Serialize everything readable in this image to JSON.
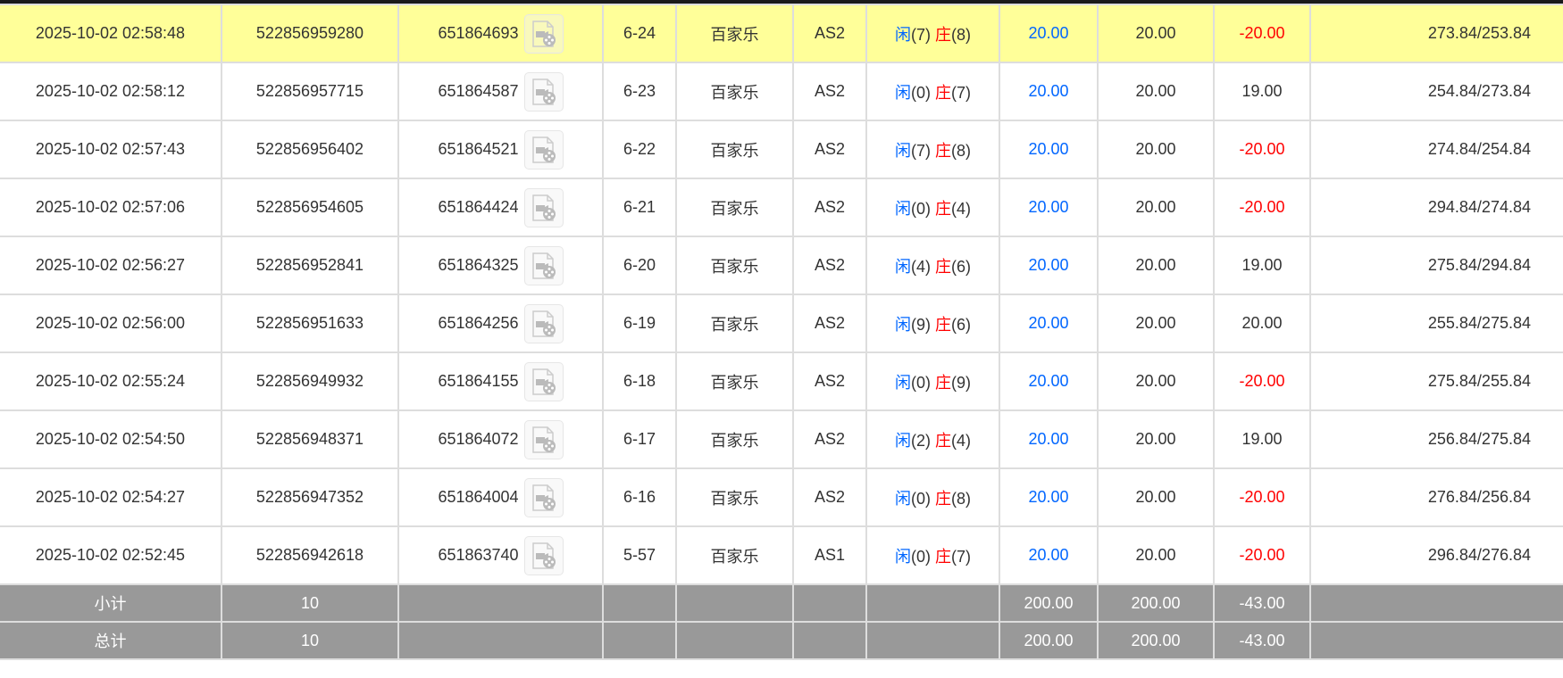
{
  "colors": {
    "highlight": "#ffff99",
    "blue": "#0066ff",
    "red": "#ff0000",
    "summary_bg": "#999999"
  },
  "rows": [
    {
      "time": "2025-10-02 02:58:48",
      "order": "522856959280",
      "round": "651864693",
      "shoe": "6-24",
      "game": "百家乐",
      "table": "AS2",
      "p": "闲",
      "pv": "(7)",
      "b": "庄",
      "bv": "(8)",
      "bet": "20.00",
      "valid": "20.00",
      "win": "-20.00",
      "neg": true,
      "balance": "273.84/253.84",
      "highlight": true
    },
    {
      "time": "2025-10-02 02:58:12",
      "order": "522856957715",
      "round": "651864587",
      "shoe": "6-23",
      "game": "百家乐",
      "table": "AS2",
      "p": "闲",
      "pv": "(0)",
      "b": "庄",
      "bv": "(7)",
      "bet": "20.00",
      "valid": "20.00",
      "win": "19.00",
      "neg": false,
      "balance": "254.84/273.84"
    },
    {
      "time": "2025-10-02 02:57:43",
      "order": "522856956402",
      "round": "651864521",
      "shoe": "6-22",
      "game": "百家乐",
      "table": "AS2",
      "p": "闲",
      "pv": "(7)",
      "b": "庄",
      "bv": "(8)",
      "bet": "20.00",
      "valid": "20.00",
      "win": "-20.00",
      "neg": true,
      "balance": "274.84/254.84"
    },
    {
      "time": "2025-10-02 02:57:06",
      "order": "522856954605",
      "round": "651864424",
      "shoe": "6-21",
      "game": "百家乐",
      "table": "AS2",
      "p": "闲",
      "pv": "(0)",
      "b": "庄",
      "bv": "(4)",
      "bet": "20.00",
      "valid": "20.00",
      "win": "-20.00",
      "neg": true,
      "balance": "294.84/274.84"
    },
    {
      "time": "2025-10-02 02:56:27",
      "order": "522856952841",
      "round": "651864325",
      "shoe": "6-20",
      "game": "百家乐",
      "table": "AS2",
      "p": "闲",
      "pv": "(4)",
      "b": "庄",
      "bv": "(6)",
      "bet": "20.00",
      "valid": "20.00",
      "win": "19.00",
      "neg": false,
      "balance": "275.84/294.84"
    },
    {
      "time": "2025-10-02 02:56:00",
      "order": "522856951633",
      "round": "651864256",
      "shoe": "6-19",
      "game": "百家乐",
      "table": "AS2",
      "p": "闲",
      "pv": "(9)",
      "b": "庄",
      "bv": "(6)",
      "bet": "20.00",
      "valid": "20.00",
      "win": "20.00",
      "neg": false,
      "balance": "255.84/275.84"
    },
    {
      "time": "2025-10-02 02:55:24",
      "order": "522856949932",
      "round": "651864155",
      "shoe": "6-18",
      "game": "百家乐",
      "table": "AS2",
      "p": "闲",
      "pv": "(0)",
      "b": "庄",
      "bv": "(9)",
      "bet": "20.00",
      "valid": "20.00",
      "win": "-20.00",
      "neg": true,
      "balance": "275.84/255.84"
    },
    {
      "time": "2025-10-02 02:54:50",
      "order": "522856948371",
      "round": "651864072",
      "shoe": "6-17",
      "game": "百家乐",
      "table": "AS2",
      "p": "闲",
      "pv": "(2)",
      "b": "庄",
      "bv": "(4)",
      "bet": "20.00",
      "valid": "20.00",
      "win": "19.00",
      "neg": false,
      "balance": "256.84/275.84"
    },
    {
      "time": "2025-10-02 02:54:27",
      "order": "522856947352",
      "round": "651864004",
      "shoe": "6-16",
      "game": "百家乐",
      "table": "AS2",
      "p": "闲",
      "pv": "(0)",
      "b": "庄",
      "bv": "(8)",
      "bet": "20.00",
      "valid": "20.00",
      "win": "-20.00",
      "neg": true,
      "balance": "276.84/256.84"
    },
    {
      "time": "2025-10-02 02:52:45",
      "order": "522856942618",
      "round": "651863740",
      "shoe": "5-57",
      "game": "百家乐",
      "table": "AS1",
      "p": "闲",
      "pv": "(0)",
      "b": "庄",
      "bv": "(7)",
      "bet": "20.00",
      "valid": "20.00",
      "win": "-20.00",
      "neg": true,
      "balance": "296.84/276.84"
    }
  ],
  "subtotal": {
    "label": "小计",
    "count": "10",
    "bet": "200.00",
    "valid": "200.00",
    "win": "-43.00"
  },
  "total": {
    "label": "总计",
    "count": "10",
    "bet": "200.00",
    "valid": "200.00",
    "win": "-43.00"
  }
}
